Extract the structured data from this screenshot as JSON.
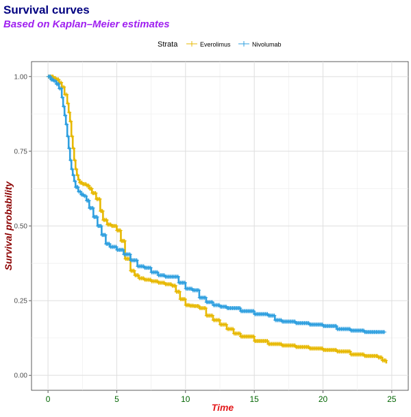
{
  "colors": {
    "title": "#000080",
    "subtitle": "#A020F0",
    "axis_title_x": "#e31a1c",
    "axis_title_y": "#8b0000",
    "tick_x": "#006400",
    "everolimus": "#E7B800",
    "nivolumab": "#2E9FDF"
  },
  "chart_data": {
    "type": "line",
    "title": "Survival curves",
    "subtitle": "Based on Kaplan–Meier estimates",
    "xlabel": "Time",
    "ylabel": "Survival probability",
    "xlim": [
      -1.2,
      26.2
    ],
    "ylim": [
      -0.05,
      1.05
    ],
    "x_ticks": [
      0,
      5,
      10,
      15,
      20,
      25
    ],
    "x_tick_labels": [
      "0",
      "5",
      "10",
      "15",
      "20",
      "25"
    ],
    "y_ticks": [
      0,
      0.25,
      0.5,
      0.75,
      1.0
    ],
    "y_tick_labels": [
      "0.00",
      "0.25",
      "0.50",
      "0.75",
      "1.00"
    ],
    "grid": true,
    "legend": {
      "title": "Strata",
      "position": "top"
    },
    "series": [
      {
        "name": "Everolimus",
        "color": "#E7B800",
        "x": [
          0,
          0.2,
          0.4,
          0.6,
          0.8,
          1.0,
          1.2,
          1.4,
          1.5,
          1.6,
          1.7,
          1.8,
          1.9,
          2.0,
          2.1,
          2.2,
          2.3,
          2.5,
          2.8,
          3.0,
          3.2,
          3.5,
          3.8,
          4.0,
          4.3,
          4.6,
          5.0,
          5.3,
          5.6,
          6.0,
          6.3,
          6.6,
          7.0,
          7.5,
          8.0,
          8.5,
          9.0,
          9.3,
          9.6,
          10.0,
          10.3,
          10.6,
          11.0,
          11.5,
          12.0,
          12.5,
          13.0,
          13.5,
          14.0,
          15.0,
          16.0,
          17.0,
          18.0,
          19.0,
          20.0,
          21.0,
          22.0,
          23.0,
          24.0,
          24.3,
          24.6
        ],
        "y": [
          1.0,
          1.0,
          0.995,
          0.99,
          0.98,
          0.965,
          0.94,
          0.91,
          0.88,
          0.85,
          0.8,
          0.76,
          0.72,
          0.69,
          0.67,
          0.655,
          0.645,
          0.64,
          0.635,
          0.625,
          0.61,
          0.59,
          0.55,
          0.52,
          0.505,
          0.5,
          0.485,
          0.45,
          0.39,
          0.35,
          0.335,
          0.325,
          0.32,
          0.315,
          0.31,
          0.305,
          0.3,
          0.28,
          0.255,
          0.235,
          0.233,
          0.232,
          0.225,
          0.2,
          0.185,
          0.17,
          0.155,
          0.14,
          0.13,
          0.115,
          0.105,
          0.1,
          0.095,
          0.09,
          0.085,
          0.08,
          0.07,
          0.065,
          0.06,
          0.05,
          0.04
        ]
      },
      {
        "name": "Nivolumab",
        "color": "#2E9FDF",
        "x": [
          0,
          0.2,
          0.4,
          0.6,
          0.8,
          1.0,
          1.1,
          1.2,
          1.3,
          1.4,
          1.5,
          1.6,
          1.7,
          1.8,
          1.9,
          2.0,
          2.2,
          2.4,
          2.6,
          2.8,
          3.0,
          3.3,
          3.6,
          3.9,
          4.2,
          4.5,
          5.0,
          5.5,
          6.0,
          6.5,
          7.0,
          7.5,
          8.0,
          8.5,
          9.0,
          9.5,
          10.0,
          10.5,
          11.0,
          11.5,
          12.0,
          12.5,
          13.0,
          14.0,
          15.0,
          16.0,
          16.5,
          17.0,
          18.0,
          19.0,
          20.0,
          21.0,
          22.0,
          23.0,
          24.0,
          24.5
        ],
        "y": [
          1.0,
          0.99,
          0.985,
          0.975,
          0.96,
          0.93,
          0.9,
          0.87,
          0.84,
          0.8,
          0.76,
          0.72,
          0.69,
          0.67,
          0.65,
          0.63,
          0.615,
          0.605,
          0.6,
          0.585,
          0.56,
          0.53,
          0.5,
          0.47,
          0.44,
          0.43,
          0.42,
          0.405,
          0.385,
          0.365,
          0.36,
          0.345,
          0.335,
          0.33,
          0.33,
          0.31,
          0.29,
          0.285,
          0.26,
          0.245,
          0.235,
          0.23,
          0.225,
          0.215,
          0.205,
          0.2,
          0.185,
          0.18,
          0.175,
          0.17,
          0.165,
          0.155,
          0.15,
          0.145,
          0.145,
          0.145
        ]
      }
    ]
  }
}
